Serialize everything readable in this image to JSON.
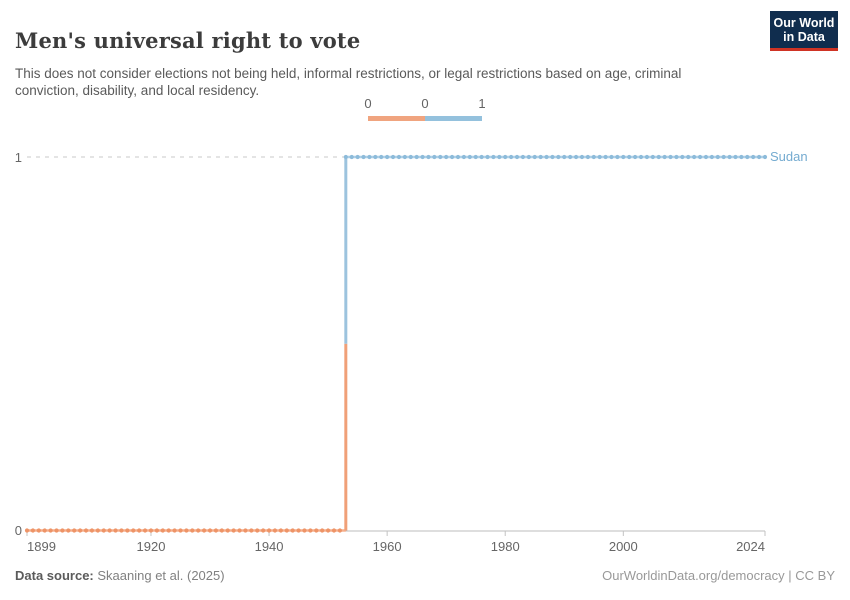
{
  "header": {
    "title": "Men's universal right to vote",
    "subtitle": "This does not consider elections not being held, informal restrictions, or legal restrictions based on age, criminal conviction, disability, and local residency.",
    "logo": {
      "line1": "Our World",
      "line2": "in Data",
      "bg": "#102d4e",
      "accent": "#cf3324"
    }
  },
  "legend": {
    "labels": [
      "0",
      "0",
      "1"
    ],
    "segments": [
      {
        "value": 0,
        "color": "#f0a47f"
      },
      {
        "value": 1,
        "color": "#94c1dd"
      }
    ]
  },
  "chart_data": {
    "type": "line",
    "variant": "step",
    "title": "Men's universal right to vote",
    "entity": "Sudan",
    "entity_color": "#74abd0",
    "x": {
      "min": 1899,
      "max": 2024,
      "ticks": [
        1899,
        1920,
        1940,
        1960,
        1980,
        2000,
        2024
      ]
    },
    "y": {
      "min": 0,
      "max": 1,
      "ticks": [
        0,
        1
      ]
    },
    "segments": [
      {
        "start": 1899,
        "end": 1952,
        "value": 0
      },
      {
        "start": 1953,
        "end": 2024,
        "value": 1
      }
    ],
    "yearly_markers": true,
    "colors": {
      "value0": {
        "line": "#f5b08e",
        "dot": "#ee9467",
        "strong": "#f0a078"
      },
      "value1": {
        "line": "#aed0e7",
        "dot": "#8dbbda",
        "strong": "#9cc3de"
      }
    },
    "grid": "dashed-horizontal-at-max",
    "legend_position": "top-center"
  },
  "footer": {
    "source_label": "Data source:",
    "source": "Skaaning et al. (2025)",
    "attribution": "OurWorldinData.org/democracy | CC BY"
  }
}
